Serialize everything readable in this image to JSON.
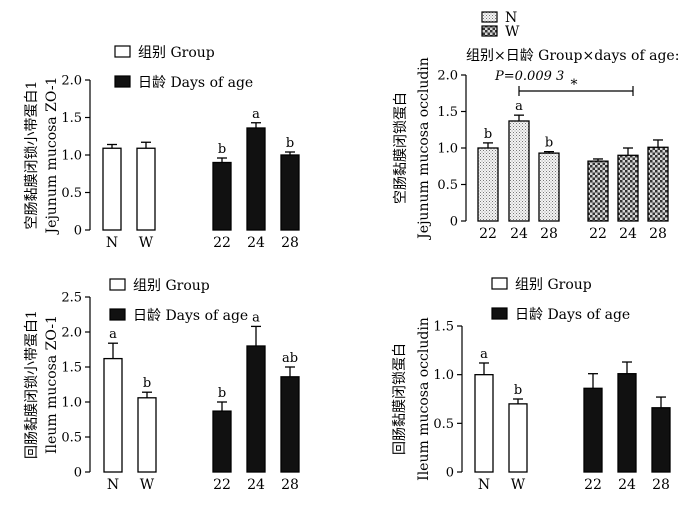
{
  "chart_data": [
    {
      "type": "bar",
      "ylabel_cn": "空肠黏膜闭锁小带蛋白1",
      "ylabel_en": "Jejunum mucosa ZO-1",
      "ylim": [
        0,
        2.0
      ],
      "yticks": [
        "0",
        "0.5",
        "1.0",
        "1.5",
        "2.0"
      ],
      "categories": [
        "N",
        "W",
        "22",
        "24",
        "28"
      ],
      "legend": [
        {
          "label": "组别  Group",
          "pattern": "white"
        },
        {
          "label": "日龄  Days of age",
          "pattern": "black"
        }
      ],
      "bars": [
        {
          "category": "N",
          "value": 1.09,
          "error": 0.05,
          "pattern": "white",
          "letter": ""
        },
        {
          "category": "W",
          "value": 1.09,
          "error": 0.08,
          "pattern": "white",
          "letter": ""
        },
        {
          "category": "22",
          "value": 0.9,
          "error": 0.06,
          "pattern": "black",
          "letter": "b"
        },
        {
          "category": "24",
          "value": 1.36,
          "error": 0.07,
          "pattern": "black",
          "letter": "a"
        },
        {
          "category": "28",
          "value": 1.0,
          "error": 0.04,
          "pattern": "black",
          "letter": "b"
        }
      ]
    },
    {
      "type": "bar",
      "ylabel_cn": "空肠黏膜闭锁蛋白",
      "ylabel_en": "Jejunum mucosa occludin",
      "ylim": [
        0,
        2.0
      ],
      "yticks": [
        "0",
        "0.5",
        "1.0",
        "1.5",
        "2.0"
      ],
      "categories": [
        "22",
        "24",
        "28",
        "22",
        "24",
        "28"
      ],
      "legend": [
        {
          "label": "N",
          "pattern": "dots"
        },
        {
          "label": "W",
          "pattern": "check"
        }
      ],
      "interaction_label": "组别×日龄  Group×days of age:",
      "p_value_label": "P=0.009 3",
      "significance_mark": "*",
      "bars": [
        {
          "category": "22",
          "value": 1.0,
          "error": 0.07,
          "pattern": "dots",
          "letter": "b"
        },
        {
          "category": "24",
          "value": 1.37,
          "error": 0.08,
          "pattern": "dots",
          "letter": "a"
        },
        {
          "category": "28",
          "value": 0.93,
          "error": 0.02,
          "pattern": "dots",
          "letter": "b"
        },
        {
          "category": "22",
          "value": 0.82,
          "error": 0.03,
          "pattern": "check",
          "letter": ""
        },
        {
          "category": "24",
          "value": 0.9,
          "error": 0.1,
          "pattern": "check",
          "letter": ""
        },
        {
          "category": "28",
          "value": 1.01,
          "error": 0.1,
          "pattern": "check",
          "letter": ""
        }
      ]
    },
    {
      "type": "bar",
      "ylabel_cn": "回肠黏膜闭锁小带蛋白1",
      "ylabel_en": "Ileum mucosa ZO-1",
      "ylim": [
        0,
        2.5
      ],
      "yticks": [
        "0",
        "0.5",
        "1.0",
        "1.5",
        "2.0",
        "2.5"
      ],
      "categories": [
        "N",
        "W",
        "22",
        "24",
        "28"
      ],
      "legend": [
        {
          "label": "组别  Group",
          "pattern": "white"
        },
        {
          "label": "日龄  Days of age",
          "pattern": "black"
        }
      ],
      "bars": [
        {
          "category": "N",
          "value": 1.62,
          "error": 0.22,
          "pattern": "white",
          "letter": "a"
        },
        {
          "category": "W",
          "value": 1.06,
          "error": 0.08,
          "pattern": "white",
          "letter": "b"
        },
        {
          "category": "22",
          "value": 0.87,
          "error": 0.13,
          "pattern": "black",
          "letter": "b"
        },
        {
          "category": "24",
          "value": 1.8,
          "error": 0.28,
          "pattern": "black",
          "letter": "a"
        },
        {
          "category": "28",
          "value": 1.36,
          "error": 0.14,
          "pattern": "black",
          "letter": "ab"
        }
      ]
    },
    {
      "type": "bar",
      "ylabel_cn": "回肠黏膜闭锁蛋白",
      "ylabel_en": "Ileum mucosa occludin",
      "ylim": [
        0,
        1.5
      ],
      "yticks": [
        "0",
        "0.5",
        "1.0",
        "1.5"
      ],
      "categories": [
        "N",
        "W",
        "22",
        "24",
        "28"
      ],
      "legend": [
        {
          "label": "组别  Group",
          "pattern": "white"
        },
        {
          "label": "日龄  Days of age",
          "pattern": "black"
        }
      ],
      "bars": [
        {
          "category": "N",
          "value": 1.0,
          "error": 0.12,
          "pattern": "white",
          "letter": "a"
        },
        {
          "category": "W",
          "value": 0.7,
          "error": 0.05,
          "pattern": "white",
          "letter": "b"
        },
        {
          "category": "22",
          "value": 0.86,
          "error": 0.15,
          "pattern": "black",
          "letter": ""
        },
        {
          "category": "24",
          "value": 1.01,
          "error": 0.12,
          "pattern": "black",
          "letter": ""
        },
        {
          "category": "28",
          "value": 0.66,
          "error": 0.11,
          "pattern": "black",
          "letter": ""
        }
      ]
    }
  ]
}
